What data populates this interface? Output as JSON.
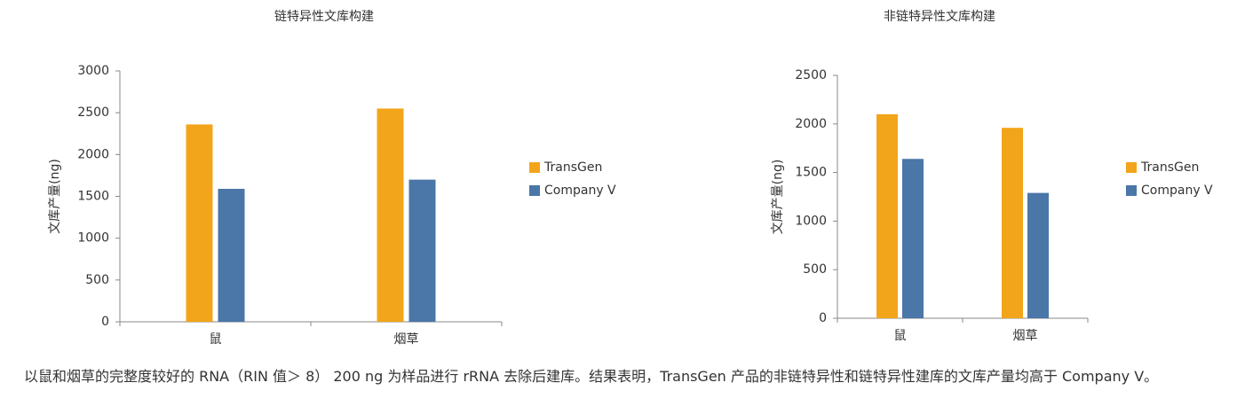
{
  "chart_data": [
    {
      "type": "bar",
      "title": "链特异性文库构建",
      "y_label": "文库产量(ng)",
      "categories": [
        "鼠",
        "烟草"
      ],
      "series": [
        {
          "name": "TransGen",
          "color": "#f2a51a",
          "values": [
            2360,
            2550
          ]
        },
        {
          "name": "Company V",
          "color": "#4a76a8",
          "values": [
            1590,
            1700
          ]
        }
      ],
      "ylim": [
        0,
        3000
      ],
      "yticks": [
        0,
        500,
        1000,
        1500,
        2000,
        2500,
        3000
      ],
      "grid": false,
      "legend": "right"
    },
    {
      "type": "bar",
      "title": "非链特异性文库构建",
      "y_label": "文库产量(ng)",
      "categories": [
        "鼠",
        "烟草"
      ],
      "series": [
        {
          "name": "TransGen",
          "color": "#f2a51a",
          "values": [
            2100,
            1960
          ]
        },
        {
          "name": "Company V",
          "color": "#4a76a8",
          "values": [
            1640,
            1290
          ]
        }
      ],
      "ylim": [
        0,
        2500
      ],
      "yticks": [
        0,
        500,
        1000,
        1500,
        2000,
        2500
      ],
      "grid": false,
      "legend": "right"
    }
  ],
  "caption": "以鼠和烟草的完整度较好的 RNA（RIN 值＞ 8） 200 ng 为样品进行 rRNA 去除后建库。结果表明，TransGen 产品的非链特异性和链特异性建库的文库产量均高于 Company V。"
}
